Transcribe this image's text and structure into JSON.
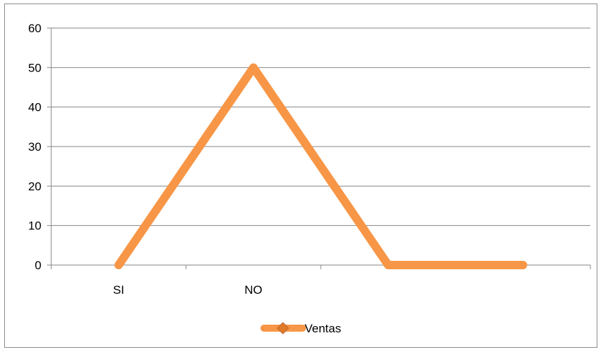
{
  "chart_data": {
    "type": "line",
    "categories": [
      "SI",
      "NO",
      "",
      ""
    ],
    "series": [
      {
        "name": "Ventas",
        "values": [
          0,
          50,
          0,
          0
        ],
        "color": "#F79646"
      }
    ],
    "ylim": [
      0,
      60
    ],
    "yticks": [
      0,
      10,
      20,
      30,
      40,
      50,
      60
    ],
    "grid": true,
    "legend_position": "bottom",
    "title": "",
    "xlabel": "",
    "ylabel": ""
  }
}
